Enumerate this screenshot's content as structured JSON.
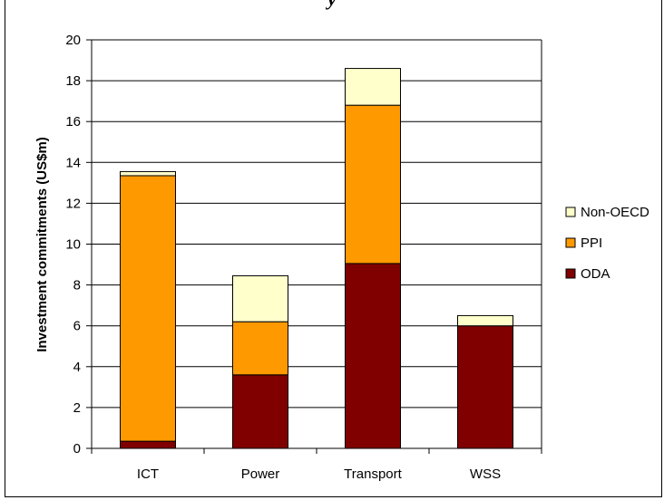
{
  "title_fragment": "y",
  "chart_data": {
    "type": "bar",
    "stacked": true,
    "title": "",
    "xlabel": "",
    "ylabel": "Investment commitments (US$m)",
    "ylim": [
      0,
      20
    ],
    "yticks": [
      0,
      2,
      4,
      6,
      8,
      10,
      12,
      14,
      16,
      18,
      20
    ],
    "grid": true,
    "legend_position": "right",
    "categories": [
      "ICT",
      "Power",
      "Transport",
      "WSS"
    ],
    "series": [
      {
        "name": "ODA",
        "color": "#800000",
        "values": [
          0.35,
          3.6,
          9.05,
          6.0
        ]
      },
      {
        "name": "PPI",
        "color": "#FF9900",
        "values": [
          13.0,
          2.6,
          7.75,
          0.0
        ]
      },
      {
        "name": "Non-OECD",
        "color": "#FFFFCC",
        "values": [
          0.2,
          2.25,
          1.8,
          0.5
        ]
      }
    ]
  }
}
